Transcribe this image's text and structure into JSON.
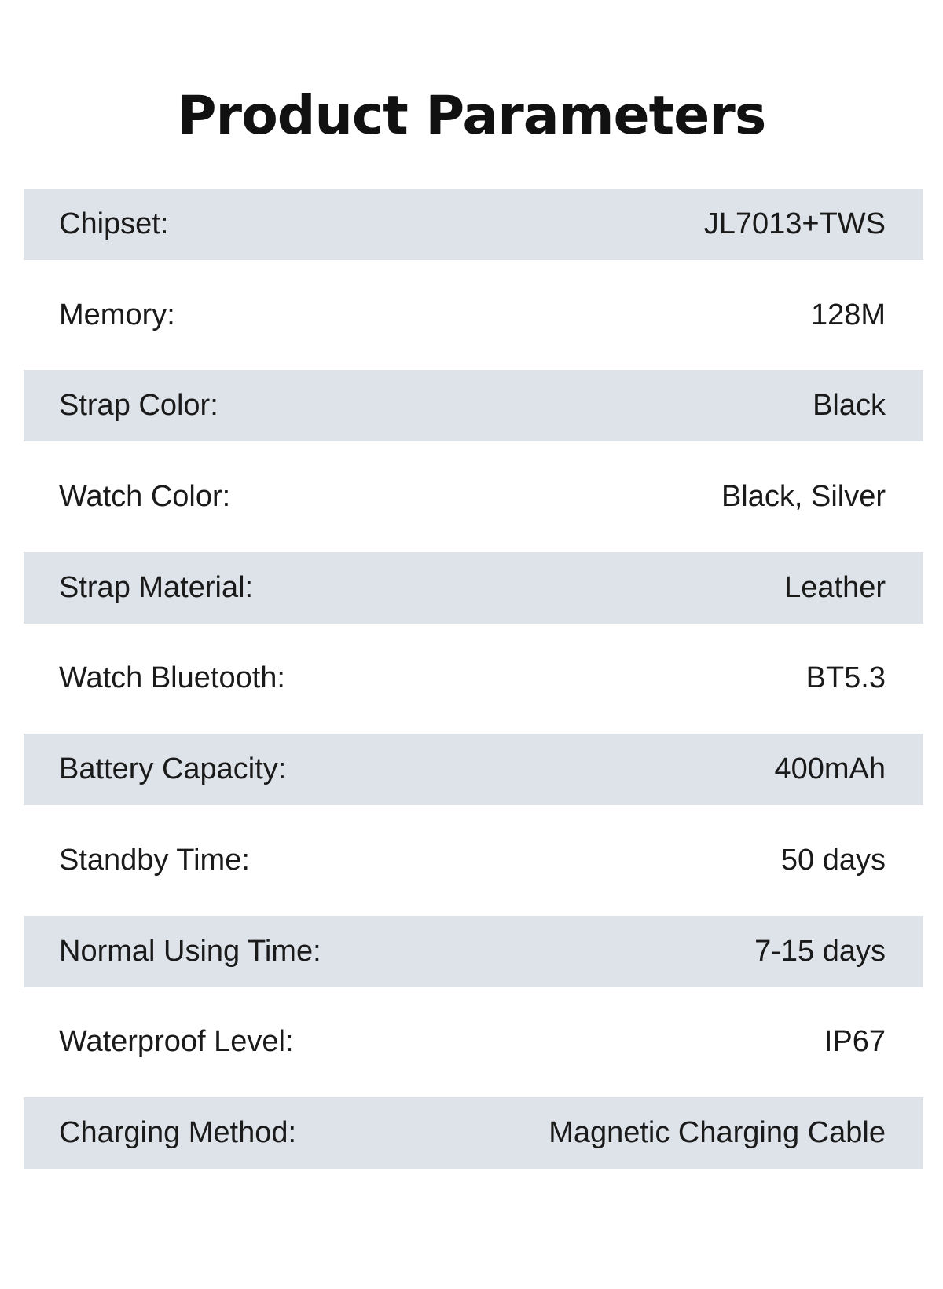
{
  "title": "Product Parameters",
  "params": [
    {
      "label": "Chipset:",
      "value": "JL7013+TWS"
    },
    {
      "label": "Memory:",
      "value": "128M"
    },
    {
      "label": "Strap Color:",
      "value": "Black"
    },
    {
      "label": "Watch Color:",
      "value": "Black, Silver"
    },
    {
      "label": "Strap Material:",
      "value": "Leather"
    },
    {
      "label": "Watch Bluetooth:",
      "value": "BT5.3"
    },
    {
      "label": "Battery Capacity:",
      "value": "400mAh"
    },
    {
      "label": "Standby Time:",
      "value": "50 days"
    },
    {
      "label": "Normal Using Time:",
      "value": "7-15 days"
    },
    {
      "label": "Waterproof Level:",
      "value": "IP67"
    },
    {
      "label": "Charging Method:",
      "value": "Magnetic Charging Cable"
    }
  ],
  "colors": {
    "shaded_row": "#dde3e9",
    "text": "#1a1a1a"
  }
}
